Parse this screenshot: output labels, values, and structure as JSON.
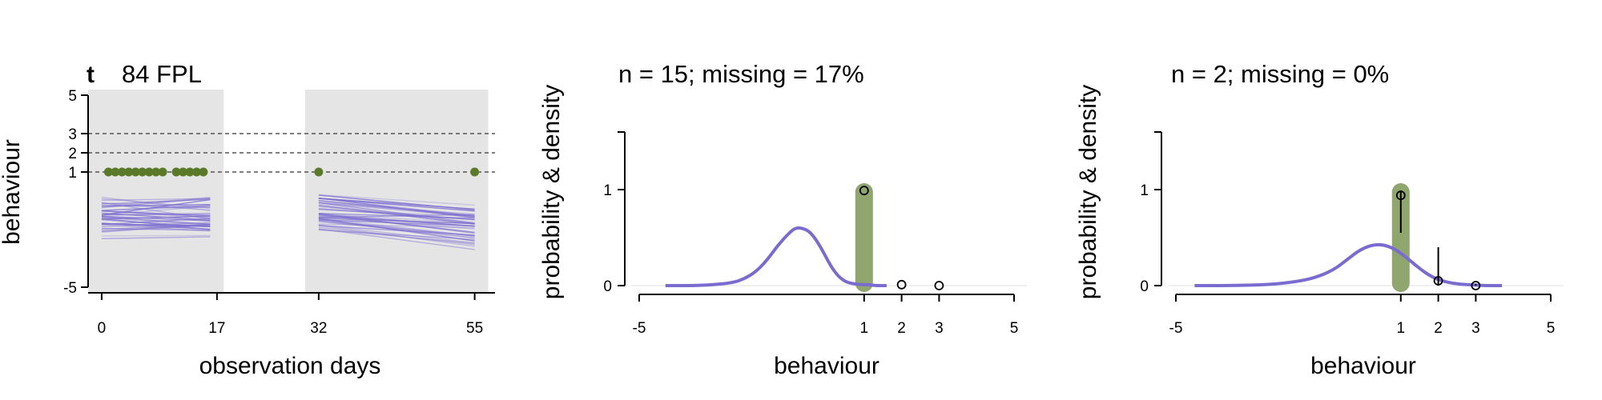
{
  "chart_data": [
    {
      "type": "line",
      "panel_tag": "t",
      "title": "84 FPL",
      "xlabel": "observation days",
      "ylabel": "behaviour",
      "xlim": [
        -2,
        58
      ],
      "ylim": [
        -5,
        5
      ],
      "x_ticks": [
        0,
        17,
        32,
        55
      ],
      "y_ticks": [
        -5,
        1,
        2,
        3,
        5
      ],
      "reference_lines_y": [
        1,
        2,
        3
      ],
      "shaded_x_ranges": [
        [
          -2,
          18
        ],
        [
          30,
          57
        ]
      ],
      "observed": {
        "color": "#5a7a2a",
        "points": [
          {
            "x": 1,
            "y": 1
          },
          {
            "x": 2,
            "y": 1
          },
          {
            "x": 3,
            "y": 1
          },
          {
            "x": 4,
            "y": 1
          },
          {
            "x": 5,
            "y": 1
          },
          {
            "x": 6,
            "y": 1
          },
          {
            "x": 7,
            "y": 1
          },
          {
            "x": 8,
            "y": 1
          },
          {
            "x": 9,
            "y": 1
          },
          {
            "x": 11,
            "y": 1
          },
          {
            "x": 12,
            "y": 1
          },
          {
            "x": 13,
            "y": 1
          },
          {
            "x": 14,
            "y": 1
          },
          {
            "x": 15,
            "y": 1
          },
          {
            "x": 32,
            "y": 1
          },
          {
            "x": 55,
            "y": 1
          }
        ]
      },
      "simulated_lines": {
        "color": "#7a6bd0",
        "segments": [
          [
            0,
            16
          ],
          [
            32,
            55
          ]
        ],
        "note_count": 40
      }
    },
    {
      "type": "line",
      "title": "n = 15; missing = 17%",
      "xlabel": "behaviour",
      "ylabel": "probability & density",
      "xlim": [
        -5,
        5
      ],
      "ylim": [
        0,
        1.6
      ],
      "x_ticks": [
        -5,
        1,
        2,
        3,
        5
      ],
      "y_ticks": [
        0,
        1
      ],
      "observed_bar": {
        "x": 1,
        "height": 1.0,
        "color": "#8fa66e"
      },
      "probability_points": [
        {
          "x": 1,
          "p": 0.99,
          "lo": 0.99,
          "hi": 0.99
        },
        {
          "x": 2,
          "p": 0.01,
          "lo": 0.01,
          "hi": 0.01
        },
        {
          "x": 3,
          "p": 0.0,
          "lo": 0.0,
          "hi": 0.0
        }
      ],
      "density": {
        "color": "#7a6bd0",
        "x": [
          -4.3,
          -3.5,
          -3.0,
          -2.5,
          -2.2,
          -1.9,
          -1.6,
          -1.3,
          -1.0,
          -0.8,
          -0.5,
          -0.3,
          -0.1,
          0.1,
          0.3,
          0.5,
          0.7,
          0.9,
          1.1,
          1.3,
          1.6
        ],
        "y": [
          0.0,
          0.0,
          0.01,
          0.03,
          0.07,
          0.14,
          0.26,
          0.42,
          0.55,
          0.61,
          0.58,
          0.49,
          0.36,
          0.21,
          0.1,
          0.04,
          0.02,
          0.01,
          0.01,
          0.0,
          0.0
        ]
      }
    },
    {
      "type": "line",
      "title": "n = 2; missing = 0%",
      "xlabel": "behaviour",
      "ylabel": "probability & density",
      "xlim": [
        -5,
        5
      ],
      "ylim": [
        0,
        1.6
      ],
      "x_ticks": [
        -5,
        1,
        2,
        3,
        5
      ],
      "y_ticks": [
        0,
        1
      ],
      "observed_bar": {
        "x": 1,
        "height": 1.0,
        "color": "#8fa66e"
      },
      "probability_points": [
        {
          "x": 1,
          "p": 0.94,
          "lo": 0.55,
          "hi": 0.99
        },
        {
          "x": 2,
          "p": 0.05,
          "lo": 0.0,
          "hi": 0.4
        },
        {
          "x": 3,
          "p": 0.0,
          "lo": 0.0,
          "hi": 0.02
        }
      ],
      "density": {
        "color": "#7a6bd0",
        "x": [
          -4.5,
          -3.5,
          -2.5,
          -1.8,
          -1.3,
          -0.8,
          -0.4,
          -0.1,
          0.2,
          0.5,
          0.8,
          1.1,
          1.4,
          1.7,
          2.0,
          2.4,
          2.8,
          3.2,
          3.7
        ],
        "y": [
          0.0,
          0.0,
          0.01,
          0.04,
          0.08,
          0.16,
          0.28,
          0.37,
          0.42,
          0.43,
          0.39,
          0.31,
          0.21,
          0.12,
          0.06,
          0.02,
          0.01,
          0.0,
          0.0
        ]
      }
    }
  ]
}
